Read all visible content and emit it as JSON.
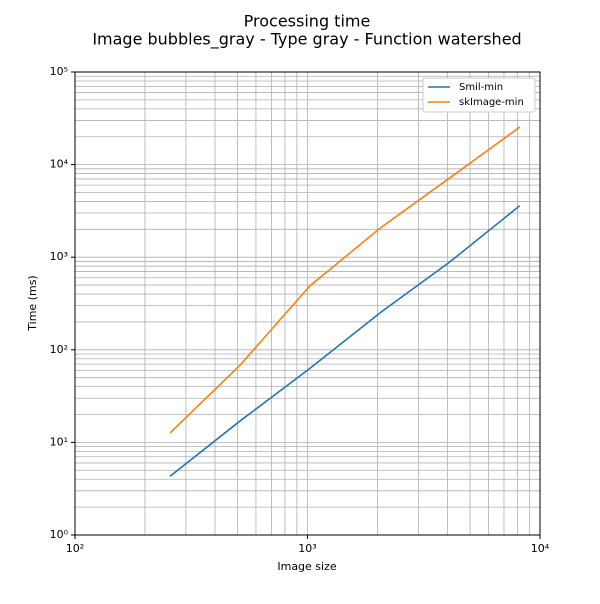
{
  "chart_data": {
    "type": "line",
    "title": "Processing time",
    "subtitle": "Image bubbles_gray - Type gray - Function watershed",
    "x_label": "Image size",
    "y_label": "Time (ms)",
    "x": [
      256,
      512,
      1024,
      2048,
      4096,
      8192
    ],
    "series": [
      {
        "name": "Smil-min",
        "color": "#1f77b4",
        "values": [
          4.3,
          17,
          63,
          250,
          890,
          3600
        ]
      },
      {
        "name": "skImage-min",
        "color": "#ff7f0e",
        "values": [
          12.6,
          68,
          490,
          2050,
          7200,
          25500
        ]
      }
    ],
    "xscale": "log",
    "yscale": "log",
    "xlim": [
      100,
      10000
    ],
    "ylim": [
      1,
      100000
    ],
    "xticks": [
      {
        "value": 100,
        "label": "10²"
      },
      {
        "value": 1000,
        "label": "10³"
      },
      {
        "value": 10000,
        "label": "10⁴"
      }
    ],
    "yticks": [
      {
        "value": 1,
        "label": "10⁰"
      },
      {
        "value": 10,
        "label": "10¹"
      },
      {
        "value": 100,
        "label": "10²"
      },
      {
        "value": 1000,
        "label": "10³"
      },
      {
        "value": 10000,
        "label": "10⁴"
      },
      {
        "value": 100000,
        "label": "10⁵"
      }
    ],
    "xminorticks": [
      200,
      300,
      400,
      500,
      600,
      700,
      800,
      900,
      2000,
      3000,
      4000,
      5000,
      6000,
      7000,
      8000,
      9000
    ],
    "yminorticks": [
      2,
      3,
      4,
      5,
      6,
      7,
      8,
      9,
      20,
      30,
      40,
      50,
      60,
      70,
      80,
      90,
      200,
      300,
      400,
      500,
      600,
      700,
      800,
      900,
      2000,
      3000,
      4000,
      5000,
      6000,
      7000,
      8000,
      9000,
      20000,
      30000,
      40000,
      50000,
      60000,
      70000,
      80000,
      90000
    ],
    "grid": true,
    "legend": "upper right"
  }
}
